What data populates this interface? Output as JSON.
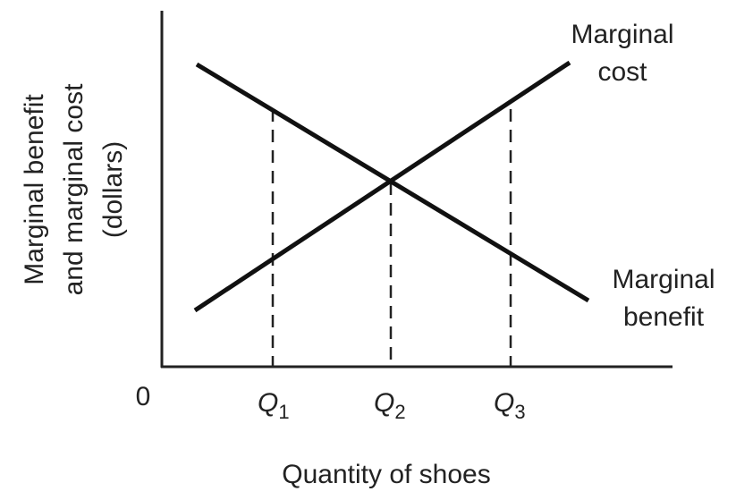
{
  "diagram": {
    "origin_label": "0",
    "x_axis_label": "Quantity of shoes",
    "y_axis_label": [
      "Marginal benefit",
      "and marginal cost",
      "(dollars)"
    ],
    "curves": [
      {
        "label": [
          "Marginal",
          "cost"
        ]
      },
      {
        "label": [
          "Marginal",
          "benefit"
        ]
      }
    ],
    "markers": [
      {
        "symbol": "Q",
        "subscript": "1"
      },
      {
        "symbol": "Q",
        "subscript": "2"
      },
      {
        "symbol": "Q",
        "subscript": "3"
      }
    ]
  }
}
